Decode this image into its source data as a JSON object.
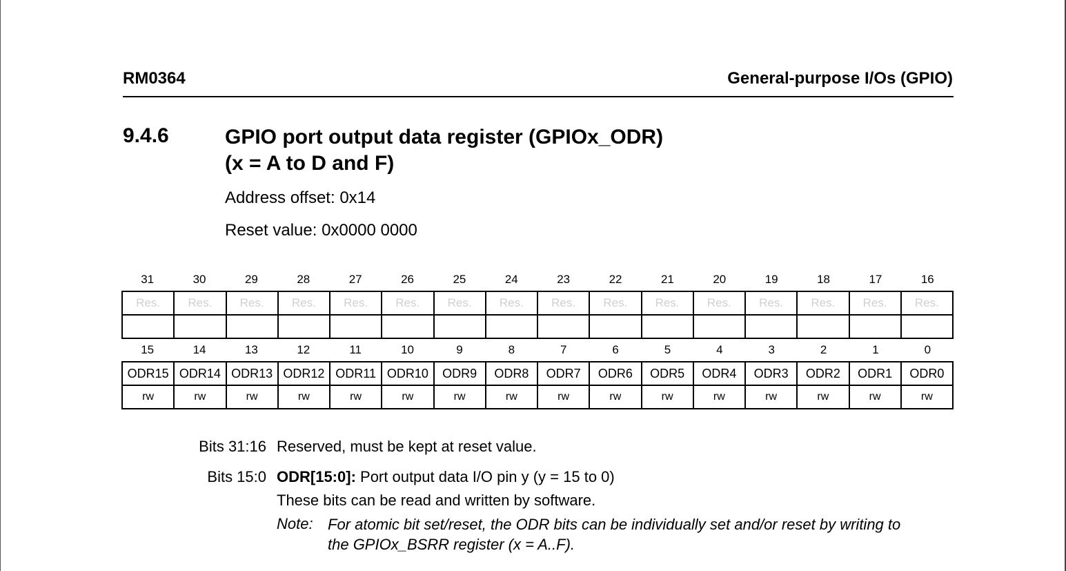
{
  "header": {
    "doc_id": "RM0364",
    "chapter": "General-purpose I/Os (GPIO)"
  },
  "section": {
    "number": "9.4.6",
    "title_line1": "GPIO port output data register (GPIOx_ODR)",
    "title_line2": "(x = A to D and F)",
    "address_offset": "Address offset: 0x14",
    "reset_value": "Reset value: 0x0000 0000"
  },
  "register": {
    "upper_bits": [
      "31",
      "30",
      "29",
      "28",
      "27",
      "26",
      "25",
      "24",
      "23",
      "22",
      "21",
      "20",
      "19",
      "18",
      "17",
      "16"
    ],
    "upper_fields": [
      "Res.",
      "Res.",
      "Res.",
      "Res.",
      "Res.",
      "Res.",
      "Res.",
      "Res.",
      "Res.",
      "Res.",
      "Res.",
      "Res.",
      "Res.",
      "Res.",
      "Res.",
      "Res."
    ],
    "upper_access": [
      "",
      "",
      "",
      "",
      "",
      "",
      "",
      "",
      "",
      "",
      "",
      "",
      "",
      "",
      "",
      ""
    ],
    "lower_bits": [
      "15",
      "14",
      "13",
      "12",
      "11",
      "10",
      "9",
      "8",
      "7",
      "6",
      "5",
      "4",
      "3",
      "2",
      "1",
      "0"
    ],
    "lower_fields": [
      "ODR15",
      "ODR14",
      "ODR13",
      "ODR12",
      "ODR11",
      "ODR10",
      "ODR9",
      "ODR8",
      "ODR7",
      "ODR6",
      "ODR5",
      "ODR4",
      "ODR3",
      "ODR2",
      "ODR1",
      "ODR0"
    ],
    "lower_access": [
      "rw",
      "rw",
      "rw",
      "rw",
      "rw",
      "rw",
      "rw",
      "rw",
      "rw",
      "rw",
      "rw",
      "rw",
      "rw",
      "rw",
      "rw",
      "rw"
    ]
  },
  "descriptions": {
    "bits_31_16_label": "Bits 31:16",
    "bits_31_16_text": "Reserved, must be kept at reset value.",
    "bits_15_0_label": "Bits 15:0",
    "bits_15_0_field": "ODR[15:0]:",
    "bits_15_0_text": " Port output data I/O pin y (y = 15 to 0)",
    "bits_15_0_line2": "These bits can be read and written by software.",
    "note_label": "Note:",
    "note_line1": "For atomic bit set/reset, the ODR bits can be individually set and/or reset by writing to",
    "note_line2": "the GPIOx_BSRR register (x = A..F)."
  }
}
